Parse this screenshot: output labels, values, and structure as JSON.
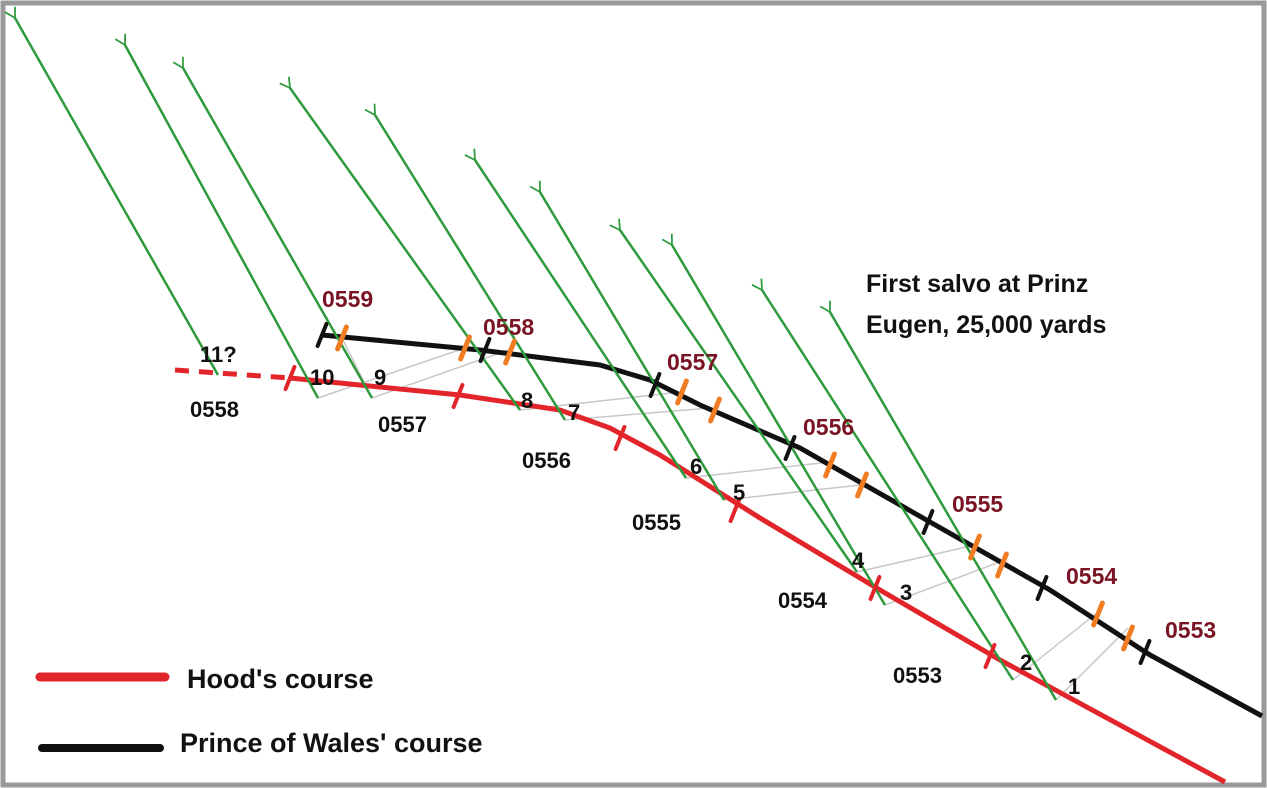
{
  "title_lines": [
    "First salvo at Prinz",
    "Eugen, 25,000 yards"
  ],
  "salvos": [
    "1",
    "2",
    "3",
    "4",
    "5",
    "6",
    "7",
    "8",
    "9",
    "10",
    "11?"
  ],
  "hood_times": [
    "0553",
    "0554",
    "0555",
    "0556",
    "0557",
    "0558"
  ],
  "pow_times": [
    "0553",
    "0554",
    "0555",
    "0556",
    "0557",
    "0558",
    "0559"
  ],
  "legend": [
    "Hood's course",
    "Prince of Wales' course"
  ]
}
